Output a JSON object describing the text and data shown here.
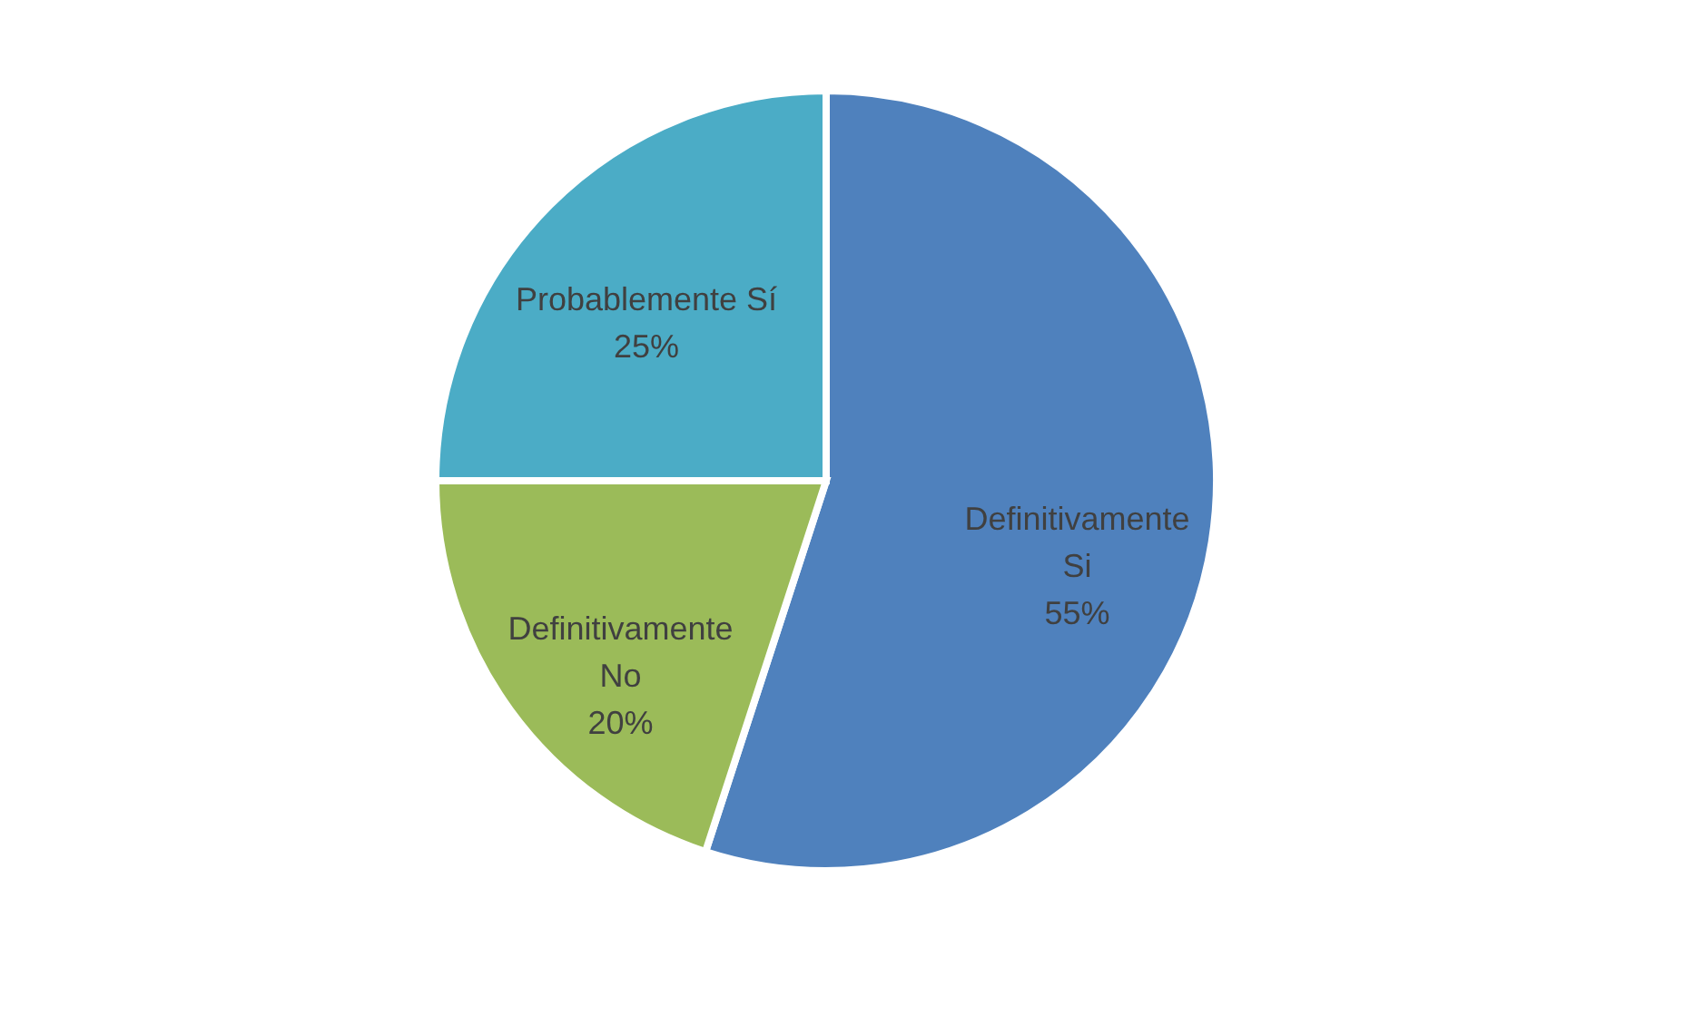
{
  "chart_data": {
    "type": "pie",
    "categories": [
      "Definitivamente Si",
      "Definitivamente No",
      "Probablemente Sí"
    ],
    "values": [
      55,
      20,
      25
    ],
    "colors": [
      "#4f81bd",
      "#9bbb59",
      "#4bacc6"
    ],
    "value_labels": [
      "55%",
      "20%",
      "25%"
    ],
    "legend": false
  }
}
